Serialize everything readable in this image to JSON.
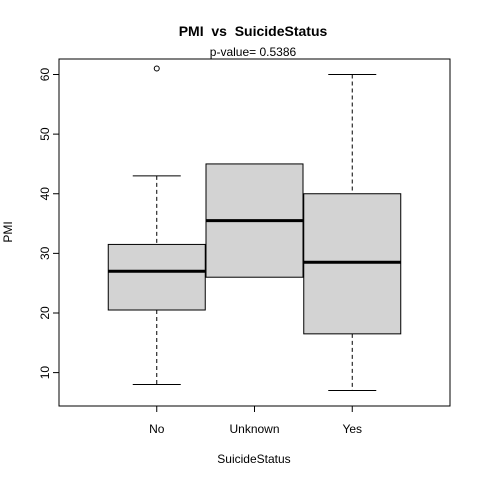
{
  "chart_data": {
    "type": "boxplot",
    "title": "PMI  vs  SuicideStatus",
    "subtitle": "p-value= 0.5386",
    "xlabel": "SuicideStatus",
    "ylabel": "PMI",
    "ylim": [
      4.4,
      62.6
    ],
    "yticks": [
      10,
      20,
      30,
      40,
      50,
      60
    ],
    "categories": [
      "No",
      "Unknown",
      "Yes"
    ],
    "boxes": [
      {
        "category": "No",
        "whisker_low": 8,
        "q1": 20.5,
        "median": 27,
        "q3": 31.5,
        "whisker_high": 43,
        "outliers": [
          61
        ]
      },
      {
        "category": "Unknown",
        "whisker_low": 26,
        "q1": 26,
        "median": 35.5,
        "q3": 45,
        "whisker_high": 45,
        "outliers": []
      },
      {
        "category": "Yes",
        "whisker_low": 7,
        "q1": 16.5,
        "median": 28.5,
        "q3": 40,
        "whisker_high": 60,
        "outliers": []
      }
    ],
    "box_fill": "#d3d3d3",
    "grid": false,
    "legend": "none"
  }
}
